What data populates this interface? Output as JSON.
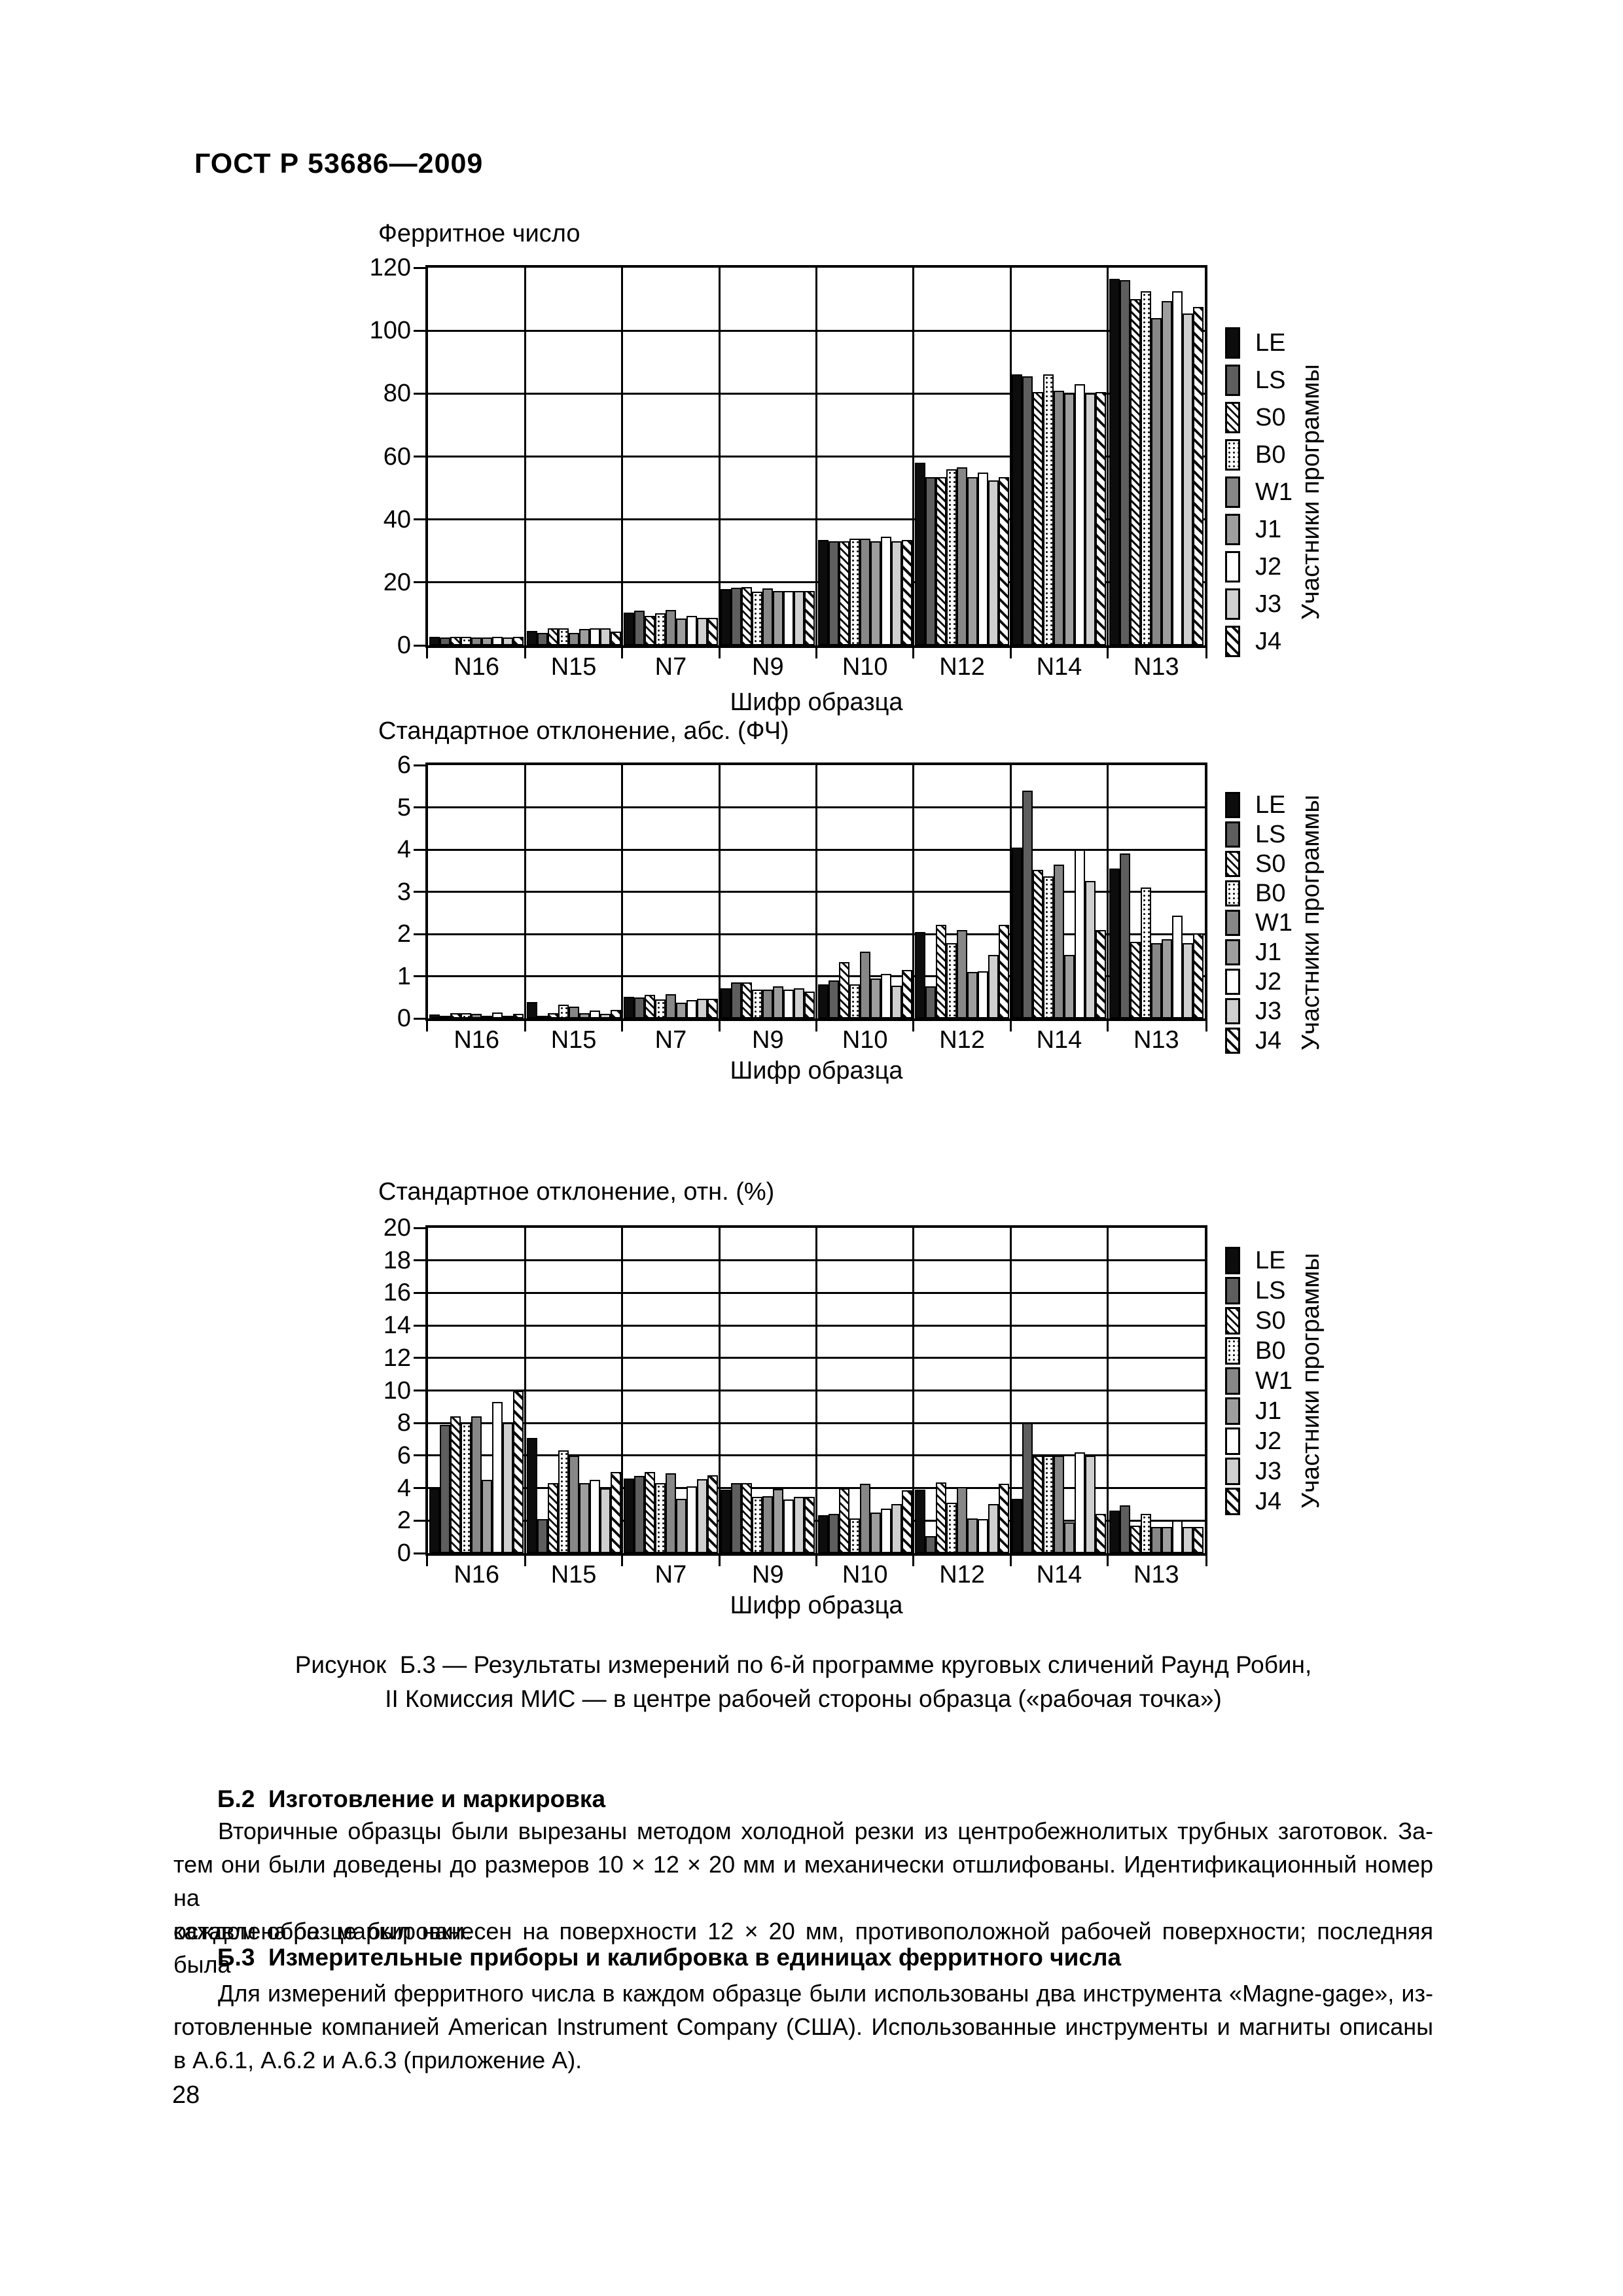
{
  "page": {
    "header": "ГОСТ Р 53686—2009",
    "figure_caption_lines": [
      "Рисунок  Б.3 — Результаты измерений по 6-й программе круговых сличений Раунд Робин,",
      "II Комиссия МИС — в центре рабочей стороны образца («рабочая точка»)"
    ],
    "sections": [
      {
        "heading": "Б.2  Изготовление и маркировка",
        "body_lines": [
          "Вторичные образцы были вырезаны методом холодной резки из центробежнолитых трубных заготовок. За-",
          "тем они были доведены до размеров 10 × 12 × 20 мм и механически отшлифованы. Идентификационный номер на",
          "каждом образце был нанесен на поверхности 12 × 20 мм, противоположной рабочей поверхности; последняя была"
        ],
        "body_last_line": "оставлена без маркировки."
      },
      {
        "heading": "Б.3  Измерительные приборы и калибровка в единицах ферритного числа",
        "body_lines": [
          "Для измерений ферритного числа в каждом образце были использованы два инструмента «Magne-gage», из-",
          "готовленные компанией American Instrument Company (США). Использованные инструменты и магниты описаны"
        ],
        "body_last_line": "в А.6.1, А.6.2 и А.6.3 (приложение А)."
      }
    ],
    "page_number": "28"
  },
  "legend": {
    "side_label": "Участники программы",
    "items": [
      {
        "label": "LE",
        "pattern": "solid-black"
      },
      {
        "label": "LS",
        "pattern": "dark-gray"
      },
      {
        "label": "S0",
        "pattern": "hatch-fine"
      },
      {
        "label": "B0",
        "pattern": "dotted"
      },
      {
        "label": "W1",
        "pattern": "mid-gray"
      },
      {
        "label": "J1",
        "pattern": "gray"
      },
      {
        "label": "J2",
        "pattern": "white"
      },
      {
        "label": "J3",
        "pattern": "light-gray"
      },
      {
        "label": "J4",
        "pattern": "hatch-coarse"
      }
    ]
  },
  "chart_data": [
    {
      "type": "bar",
      "title": "Ферритное число",
      "xlabel": "Шифр образца",
      "ylabel": "",
      "categories": [
        "N16",
        "N15",
        "N7",
        "N9",
        "N10",
        "N12",
        "N14",
        "N13"
      ],
      "ylim": [
        0,
        120
      ],
      "tick_step": 20,
      "grid": true,
      "legend_position": "right",
      "series": [
        {
          "name": "LE",
          "values": [
            2.8,
            4.6,
            10.3,
            17.8,
            33.5,
            58.0,
            86.0,
            116.5
          ]
        },
        {
          "name": "LS",
          "values": [
            2.6,
            4.0,
            11.1,
            18.3,
            33.0,
            53.5,
            85.5,
            116.0
          ]
        },
        {
          "name": "S0",
          "values": [
            2.7,
            5.5,
            9.3,
            18.5,
            33.0,
            53.5,
            80.5,
            110.0
          ]
        },
        {
          "name": "B0",
          "values": [
            2.7,
            5.5,
            10.1,
            17.0,
            34.0,
            56.0,
            86.0,
            112.5
          ]
        },
        {
          "name": "W1",
          "values": [
            2.6,
            4.0,
            11.3,
            18.2,
            34.0,
            56.5,
            81.0,
            104.0
          ]
        },
        {
          "name": "J1",
          "values": [
            2.6,
            5.3,
            8.6,
            17.3,
            33.0,
            53.5,
            80.0,
            109.5
          ]
        },
        {
          "name": "J2",
          "values": [
            2.7,
            5.5,
            9.4,
            17.2,
            34.5,
            55.0,
            83.0,
            112.5
          ]
        },
        {
          "name": "J3",
          "values": [
            2.6,
            5.5,
            8.7,
            17.2,
            33.0,
            52.5,
            80.0,
            105.5
          ]
        },
        {
          "name": "J4",
          "values": [
            2.7,
            4.4,
            8.7,
            17.3,
            33.5,
            53.5,
            80.5,
            107.5
          ]
        }
      ]
    },
    {
      "type": "bar",
      "title": "Стандартное отклонение, абс. (ФЧ)",
      "xlabel": "Шифр образца",
      "ylabel": "",
      "categories": [
        "N16",
        "N15",
        "N7",
        "N9",
        "N10",
        "N12",
        "N14",
        "N13"
      ],
      "ylim": [
        0,
        6
      ],
      "tick_step": 1,
      "grid": true,
      "legend_position": "right",
      "series": [
        {
          "name": "LE",
          "values": [
            0.1,
            0.39,
            0.51,
            0.72,
            0.8,
            2.05,
            4.05,
            3.55
          ]
        },
        {
          "name": "LS",
          "values": [
            0.05,
            0.06,
            0.5,
            0.85,
            0.9,
            0.76,
            5.4,
            3.9
          ]
        },
        {
          "name": "S0",
          "values": [
            0.13,
            0.13,
            0.56,
            0.85,
            1.33,
            2.22,
            3.52,
            1.82
          ]
        },
        {
          "name": "B0",
          "values": [
            0.13,
            0.33,
            0.45,
            0.68,
            0.8,
            1.79,
            3.37,
            3.1
          ]
        },
        {
          "name": "W1",
          "values": [
            0.11,
            0.28,
            0.57,
            0.69,
            1.58,
            2.1,
            3.64,
            1.79
          ]
        },
        {
          "name": "J1",
          "values": [
            0.05,
            0.13,
            0.38,
            0.76,
            0.95,
            1.1,
            1.5,
            1.87
          ]
        },
        {
          "name": "J2",
          "values": [
            0.14,
            0.19,
            0.43,
            0.69,
            1.05,
            1.12,
            4.0,
            2.43
          ]
        },
        {
          "name": "J3",
          "values": [
            0.06,
            0.11,
            0.47,
            0.71,
            0.78,
            1.51,
            3.25,
            1.79
          ]
        },
        {
          "name": "J4",
          "values": [
            0.11,
            0.2,
            0.47,
            0.64,
            1.15,
            2.22,
            2.1,
            2.02
          ]
        }
      ]
    },
    {
      "type": "bar",
      "title": "Стандартное отклонение, отн. (%)",
      "xlabel": "Шифр образца",
      "ylabel": "",
      "categories": [
        "N16",
        "N15",
        "N7",
        "N9",
        "N10",
        "N12",
        "N14",
        "N13"
      ],
      "ylim": [
        0,
        20
      ],
      "tick_step": 2,
      "grid": true,
      "legend_position": "right",
      "series": [
        {
          "name": "LE",
          "values": [
            4.0,
            7.1,
            4.6,
            3.9,
            2.35,
            3.9,
            3.35,
            2.6
          ]
        },
        {
          "name": "LS",
          "values": [
            7.9,
            2.1,
            4.75,
            4.3,
            2.4,
            1.05,
            8.0,
            2.95
          ]
        },
        {
          "name": "S0",
          "values": [
            8.4,
            4.3,
            5.0,
            4.3,
            4.0,
            4.35,
            6.0,
            1.7
          ]
        },
        {
          "name": "B0",
          "values": [
            8.0,
            6.3,
            4.3,
            3.45,
            2.15,
            3.1,
            6.0,
            2.4
          ]
        },
        {
          "name": "W1",
          "values": [
            8.4,
            6.0,
            4.9,
            3.5,
            4.25,
            4.05,
            6.0,
            1.6
          ]
        },
        {
          "name": "J1",
          "values": [
            4.5,
            4.3,
            3.35,
            3.95,
            2.5,
            2.15,
            1.9,
            1.6
          ]
        },
        {
          "name": "J2",
          "values": [
            9.3,
            4.5,
            4.1,
            3.3,
            2.75,
            2.1,
            6.2,
            2.0
          ]
        },
        {
          "name": "J3",
          "values": [
            8.0,
            4.0,
            4.55,
            3.45,
            3.0,
            3.0,
            6.0,
            1.6
          ]
        },
        {
          "name": "J4",
          "values": [
            10.0,
            5.0,
            4.8,
            3.45,
            3.85,
            4.25,
            2.4,
            1.6
          ]
        }
      ]
    }
  ]
}
